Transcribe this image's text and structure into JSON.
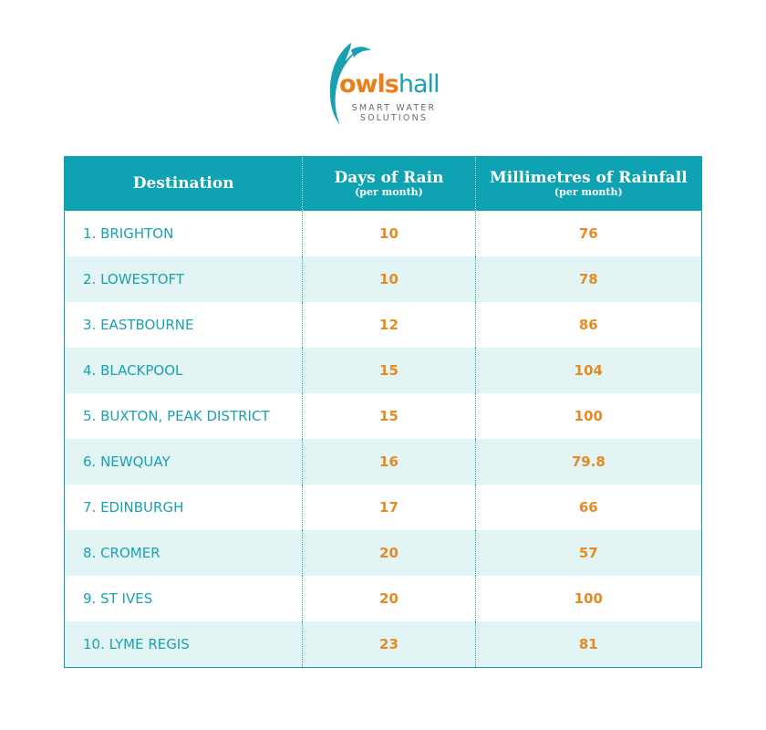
{
  "logo": {
    "word_part1": "owls",
    "word_part2": "hall",
    "tagline_line1": "SMART WATER",
    "tagline_line2": "SOLUTIONS",
    "brand_orange": "#e97f1a",
    "brand_teal": "#1aa1b1"
  },
  "table": {
    "header": {
      "destination": "Destination",
      "days": "Days of Rain",
      "days_sub": "(per month)",
      "mm": "Millimetres of Rainfall",
      "mm_sub": "(per month)"
    },
    "rows": [
      {
        "destination": "1. BRIGHTON",
        "days": "10",
        "mm": "76"
      },
      {
        "destination": "2. LOWESTOFT",
        "days": "10",
        "mm": "78"
      },
      {
        "destination": "3. EASTBOURNE",
        "days": "12",
        "mm": "86"
      },
      {
        "destination": "4. BLACKPOOL",
        "days": "15",
        "mm": "104"
      },
      {
        "destination": "5. BUXTON, PEAK DISTRICT",
        "days": "15",
        "mm": "100"
      },
      {
        "destination": "6. NEWQUAY",
        "days": "16",
        "mm": "79.8"
      },
      {
        "destination": "7. EDINBURGH",
        "days": "17",
        "mm": "66"
      },
      {
        "destination": "8. CROMER",
        "days": "20",
        "mm": "57"
      },
      {
        "destination": "9. ST IVES",
        "days": "20",
        "mm": "100"
      },
      {
        "destination": "10. LYME REGIS",
        "days": "23",
        "mm": "81"
      }
    ]
  },
  "colors": {
    "header_bg": "#0ea2b2",
    "alt_row_bg": "#e3f4f5",
    "destination_text": "#1aa1b1",
    "number_text": "#e48b24"
  }
}
